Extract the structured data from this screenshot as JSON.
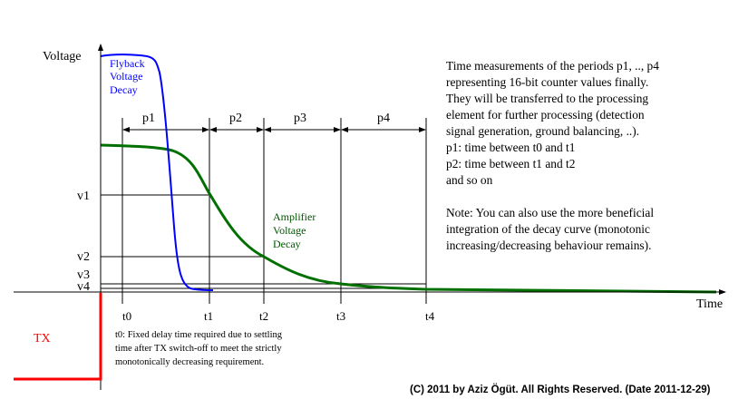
{
  "axes": {
    "y_label": "Voltage",
    "x_label": "Time"
  },
  "curves": {
    "flyback": {
      "label_lines": [
        "Flyback",
        "Voltage",
        "Decay"
      ],
      "color": "#0000ff"
    },
    "amplifier": {
      "label_lines": [
        "Amplifier",
        "Voltage",
        "Decay"
      ],
      "color": "#007000"
    }
  },
  "periods": [
    "p1",
    "p2",
    "p3",
    "p4"
  ],
  "levels": [
    "v1",
    "v2",
    "v3",
    "v4"
  ],
  "times": [
    "t0",
    "t1",
    "t2",
    "t3",
    "t4"
  ],
  "tx": {
    "label": "TX",
    "color": "#ff0000"
  },
  "t0_note": [
    "t0: Fixed delay time required due to settling",
    "time after TX switch-off to meet the strictly",
    "monotonically decreasing requirement."
  ],
  "description": [
    "Time measurements of the periods p1, .., p4",
    "representing 16-bit counter values finally.",
    "They will be transferred to the processing",
    "element for further processing (detection",
    "signal generation, ground balancing, ..).",
    "p1: time between t0 and t1",
    "p2: time between t1 and t2",
    "and so on",
    "",
    "Note: You can also use the more beneficial",
    "integration of the decay curve (monotonic",
    "increasing/decreasing behaviour remains)."
  ],
  "copyright": "(C) 2011 by Aziz Ögüt. All Rights Reserved. (Date 2011-12-29)"
}
